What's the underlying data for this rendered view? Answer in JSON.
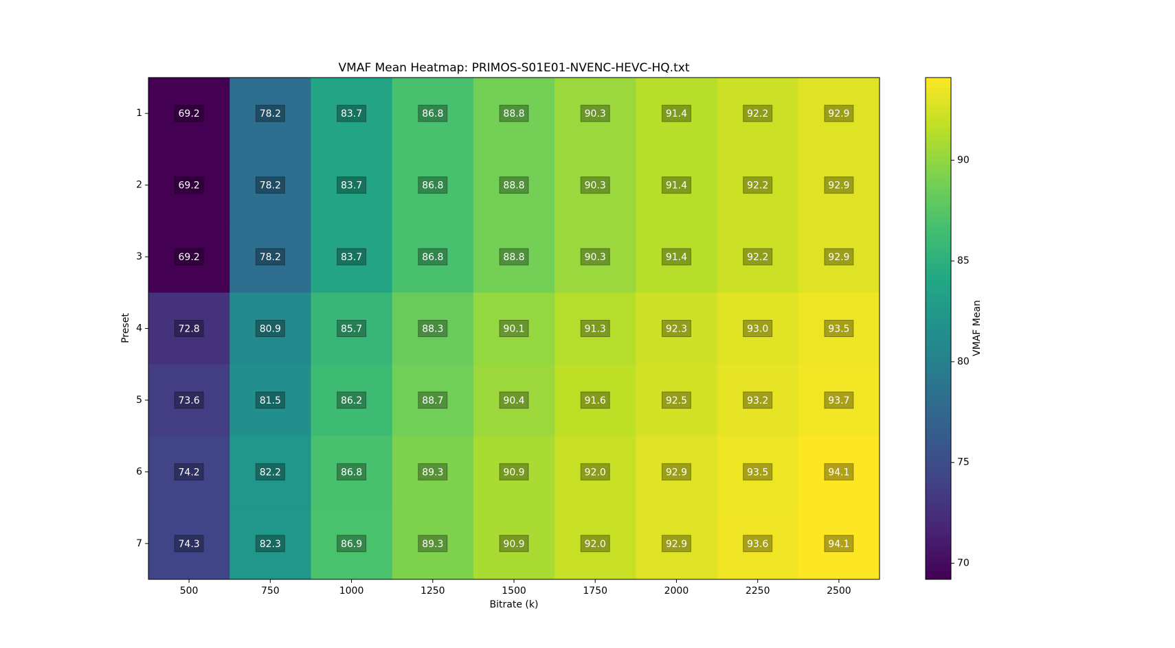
{
  "chart_data": {
    "type": "heatmap",
    "title": "VMAF Mean Heatmap: PRIMOS-S01E01-NVENC-HEVC-HQ.txt",
    "xlabel": "Bitrate (k)",
    "ylabel": "Preset",
    "x": [
      "500",
      "750",
      "1000",
      "1250",
      "1500",
      "1750",
      "2000",
      "2250",
      "2500"
    ],
    "y": [
      "1",
      "2",
      "3",
      "4",
      "5",
      "6",
      "7"
    ],
    "values": [
      [
        69.2,
        78.2,
        83.7,
        86.8,
        88.8,
        90.3,
        91.4,
        92.2,
        92.9
      ],
      [
        69.2,
        78.2,
        83.7,
        86.8,
        88.8,
        90.3,
        91.4,
        92.2,
        92.9
      ],
      [
        69.2,
        78.2,
        83.7,
        86.8,
        88.8,
        90.3,
        91.4,
        92.2,
        92.9
      ],
      [
        72.8,
        80.9,
        85.7,
        88.3,
        90.1,
        91.3,
        92.3,
        93.0,
        93.5
      ],
      [
        73.6,
        81.5,
        86.2,
        88.7,
        90.4,
        91.6,
        92.5,
        93.2,
        93.7
      ],
      [
        74.2,
        82.2,
        86.8,
        89.3,
        90.9,
        92.0,
        92.9,
        93.5,
        94.1
      ],
      [
        74.3,
        82.3,
        86.9,
        89.3,
        90.9,
        92.0,
        92.9,
        93.6,
        94.1
      ]
    ],
    "value_labels": [
      [
        "69.2",
        "78.2",
        "83.7",
        "86.8",
        "88.8",
        "90.3",
        "91.4",
        "92.2",
        "92.9"
      ],
      [
        "69.2",
        "78.2",
        "83.7",
        "86.8",
        "88.8",
        "90.3",
        "91.4",
        "92.2",
        "92.9"
      ],
      [
        "69.2",
        "78.2",
        "83.7",
        "86.8",
        "88.8",
        "90.3",
        "91.4",
        "92.2",
        "92.9"
      ],
      [
        "72.8",
        "80.9",
        "85.7",
        "88.3",
        "90.1",
        "91.3",
        "92.3",
        "93.0",
        "93.5"
      ],
      [
        "73.6",
        "81.5",
        "86.2",
        "88.7",
        "90.4",
        "91.6",
        "92.5",
        "93.2",
        "93.7"
      ],
      [
        "74.2",
        "82.2",
        "86.8",
        "89.3",
        "90.9",
        "92.0",
        "92.9",
        "93.5",
        "94.1"
      ],
      [
        "74.3",
        "82.3",
        "86.9",
        "89.3",
        "90.9",
        "92.0",
        "92.9",
        "93.6",
        "94.1"
      ]
    ],
    "colormap": "viridis",
    "colorbar_label": "VMAF Mean",
    "clim": [
      69.2,
      94.1
    ],
    "cticks": [
      70,
      75,
      80,
      85,
      90
    ]
  }
}
